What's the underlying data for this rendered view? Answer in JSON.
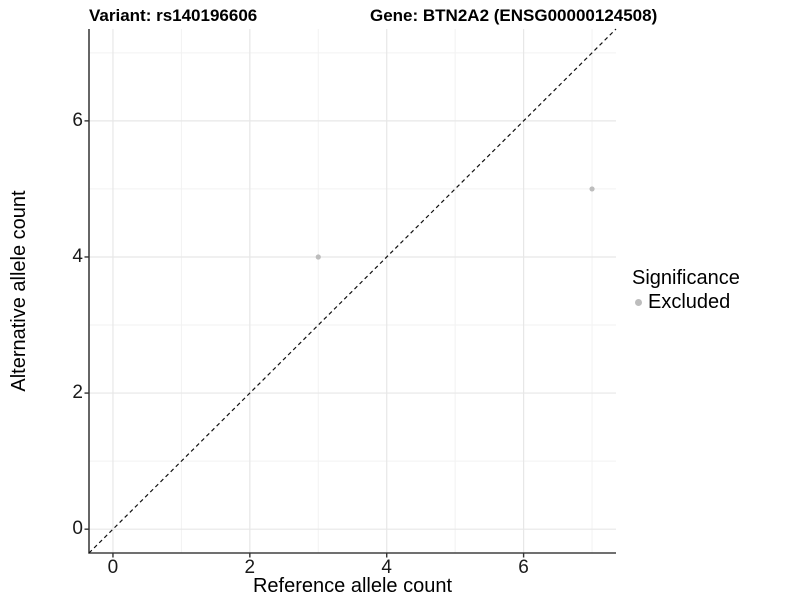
{
  "figure_titles": {
    "variant": "Variant: rs140196606",
    "gene": "Gene: BTN2A2 (ENSG00000124508)"
  },
  "chart_data": {
    "type": "scatter",
    "xlabel": "Reference allele count",
    "ylabel": "Alternative allele count",
    "xlim": [
      -0.35,
      7.35
    ],
    "ylim": [
      -0.35,
      7.35
    ],
    "xticks": [
      0,
      2,
      4,
      6
    ],
    "yticks": [
      0,
      2,
      4,
      6
    ],
    "x_minor": [
      1,
      3,
      5,
      7
    ],
    "y_minor": [
      1,
      3,
      5,
      7
    ],
    "grid": "on",
    "series": [
      {
        "name": "Excluded",
        "color": "#bdbdbd",
        "points": [
          [
            3,
            4
          ],
          [
            7,
            5
          ]
        ]
      }
    ],
    "reference_line": {
      "kind": "identity y=x",
      "style": "dashed",
      "color": "#111111",
      "from": [
        -0.35,
        -0.35
      ],
      "to": [
        7.35,
        7.35
      ]
    },
    "legend": {
      "title": "Significance",
      "position": "right",
      "entries": [
        {
          "label": "Excluded",
          "color": "#bdbdbd",
          "marker": "circle"
        }
      ]
    }
  },
  "colors": {
    "background": "#ffffff",
    "grid_major": "#e7e7e7",
    "grid_minor": "#f2f2f2",
    "axis_line": "#404040",
    "tick": "#333333",
    "point": "#bdbdbd",
    "text": "#000000"
  }
}
